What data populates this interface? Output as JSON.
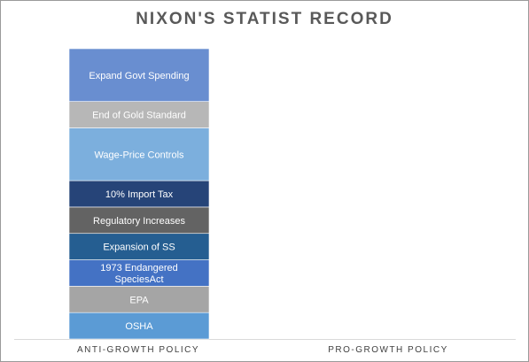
{
  "chart_data": {
    "type": "bar",
    "stacked": true,
    "title": "NIXON'S STATIST RECORD",
    "categories": [
      "ANTI-GROWTH POLICY",
      "PRO-GROWTH POLICY"
    ],
    "series": [
      {
        "name": "OSHA",
        "values": [
          1,
          0
        ],
        "color": "#5b9bd5",
        "text_color": "#ffffff"
      },
      {
        "name": "EPA",
        "values": [
          1,
          0
        ],
        "color": "#a5a5a5",
        "text_color": "#ffffff"
      },
      {
        "name": "1973 Endangered SpeciesAct",
        "values": [
          1,
          0
        ],
        "color": "#4472c4",
        "text_color": "#ffffff"
      },
      {
        "name": "Expansion of SS",
        "values": [
          1,
          0
        ],
        "color": "#255e91",
        "text_color": "#ffffff"
      },
      {
        "name": "Regulatory Increases",
        "values": [
          1,
          0
        ],
        "color": "#636363",
        "text_color": "#ffffff"
      },
      {
        "name": "10% Import Tax",
        "values": [
          1,
          0
        ],
        "color": "#264478",
        "text_color": "#ffffff"
      },
      {
        "name": "Wage-Price Controls",
        "values": [
          2,
          0
        ],
        "color": "#7cafdd",
        "text_color": "#ffffff"
      },
      {
        "name": "End of Gold Standard",
        "values": [
          1,
          0
        ],
        "color": "#b7b7b7",
        "text_color": "#ffffff"
      },
      {
        "name": "Expand Govt Spending",
        "values": [
          2,
          0
        ],
        "color": "#698ed0",
        "text_color": "#ffffff"
      }
    ],
    "ylim": [
      0,
      11
    ],
    "grid": false,
    "legend": "none"
  }
}
